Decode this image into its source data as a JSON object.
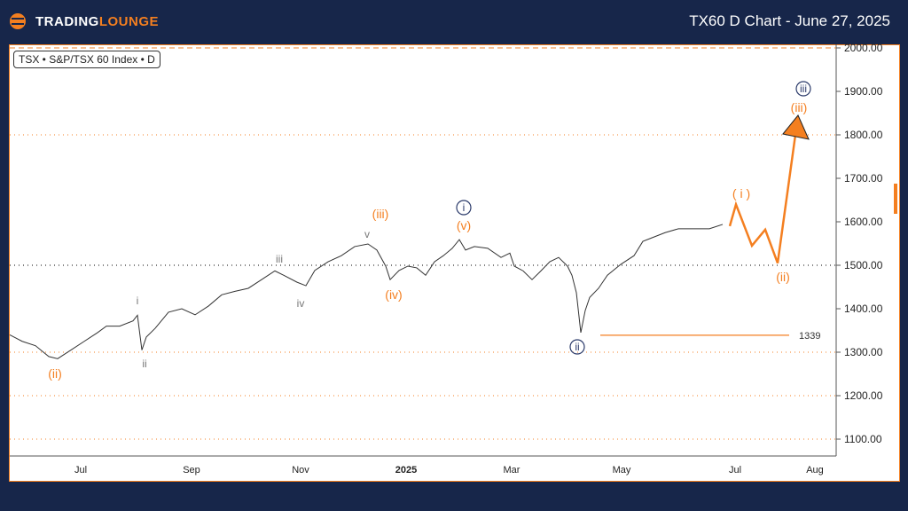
{
  "header": {
    "brand_a": "TRADING",
    "brand_b": "LOUNGE",
    "title": "TX60 D Chart - June 27, 2025"
  },
  "symbol_label": "TSX • S&P/TSX 60 Index • D",
  "chart_data": {
    "type": "line",
    "title": "TX60 D Chart - June 27, 2025",
    "ylim": [
      1050,
      2010
    ],
    "y_ticks": [
      "2000.00",
      "1900.00",
      "1800.00",
      "1700.00",
      "1600.00",
      "1500.00",
      "1400.00",
      "1300.00",
      "1200.00",
      "1100.00"
    ],
    "x_ticks": [
      "Jul",
      "Sep",
      "Nov",
      "2025",
      "Mar",
      "May",
      "Jul",
      "Aug"
    ],
    "price_path": [
      1340,
      1325,
      1315,
      1290,
      1285,
      1305,
      1325,
      1345,
      1360,
      1360,
      1372,
      1385,
      1305,
      1335,
      1355,
      1392,
      1400,
      1386,
      1406,
      1432,
      1440,
      1447,
      1467,
      1487,
      1477,
      1461,
      1453,
      1488,
      1508,
      1522,
      1543,
      1549,
      1535,
      1498,
      1467,
      1488,
      1498,
      1494,
      1477,
      1508,
      1522,
      1539,
      1559,
      1535,
      1543,
      1539,
      1518,
      1528,
      1498,
      1487,
      1467,
      1487,
      1508,
      1518,
      1498,
      1477,
      1437,
      1345,
      1396,
      1426,
      1447,
      1477,
      1502,
      1522,
      1555,
      1563,
      1575,
      1584,
      1584,
      1584,
      1594
    ],
    "forecast_path": [
      1590,
      1640,
      1545,
      1582,
      1505,
      1800
    ],
    "levels": [
      {
        "value": 2000,
        "style": "orange-dashed"
      },
      {
        "value": 1800,
        "style": "orange-dotted"
      },
      {
        "value": 1500,
        "style": "black-dotted"
      },
      {
        "value": 1300,
        "style": "orange-dotted"
      },
      {
        "value": 1200,
        "style": "orange-dotted"
      },
      {
        "value": 1100,
        "style": "orange-dotted"
      }
    ],
    "support": {
      "value": 1339,
      "label": "1339"
    },
    "wave_labels": [
      {
        "text": "(ii)",
        "color": "orange"
      },
      {
        "text": "i",
        "color": "gray"
      },
      {
        "text": "ii",
        "color": "gray"
      },
      {
        "text": "iii",
        "color": "gray"
      },
      {
        "text": "iv",
        "color": "gray"
      },
      {
        "text": "v",
        "color": "gray"
      },
      {
        "text": "(iii)",
        "color": "orange"
      },
      {
        "text": "(iv)",
        "color": "orange"
      },
      {
        "text": "(v)",
        "color": "orange"
      },
      {
        "text": "i",
        "color": "navy-circle"
      },
      {
        "text": "ii",
        "color": "navy-circle"
      },
      {
        "text": "( i )",
        "color": "orange"
      },
      {
        "text": "(ii)",
        "color": "orange"
      },
      {
        "text": "(iii)",
        "color": "orange"
      },
      {
        "text": "iii",
        "color": "navy-circle"
      }
    ]
  }
}
